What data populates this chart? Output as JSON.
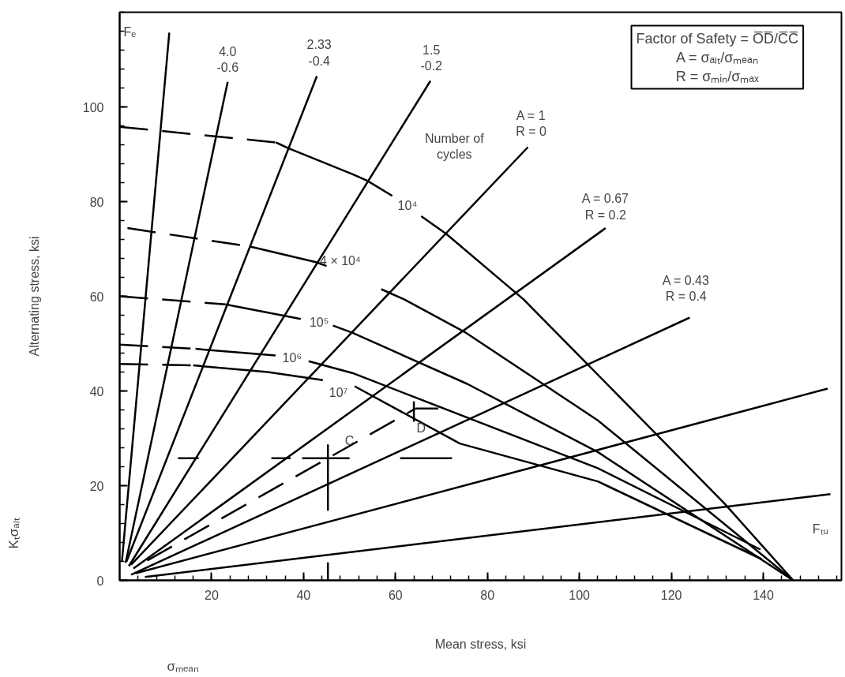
{
  "chart_data": {
    "type": "line",
    "xlabel": "Mean stress, ksi",
    "ylabel": "Alternating stress, ksi",
    "xlim": [
      0,
      157
    ],
    "ylim": [
      0,
      120
    ],
    "xticks": [
      20,
      40,
      60,
      80,
      100,
      120,
      140
    ],
    "yticks": [
      0,
      20,
      40,
      60,
      80,
      100
    ],
    "line_style": "solid",
    "marker": "none",
    "series": [
      {
        "color": "#000000",
        "x": [
          0.5,
          10.8
        ],
        "values": [
          4,
          115.7
        ]
      },
      {
        "color": "#000000",
        "x": [
          1.3,
          23.5
        ],
        "values": [
          3.7,
          105.3
        ]
      },
      {
        "color": "#000000",
        "x": [
          1.5,
          42.9
        ],
        "values": [
          4,
          106.5
        ]
      },
      {
        "color": "#000000",
        "x": [
          2,
          67.6
        ],
        "values": [
          3,
          105.5
        ]
      },
      {
        "color": "#000000",
        "x": [
          2.5,
          88.8
        ],
        "values": [
          3.3,
          91.5
        ]
      },
      {
        "color": "#000000",
        "x": [
          3,
          105.7
        ],
        "values": [
          2.5,
          74.4
        ]
      },
      {
        "color": "#000000",
        "x": [
          2.5,
          124
        ],
        "values": [
          1.2,
          55.5
        ]
      },
      {
        "color": "#000000",
        "x": [
          3.5,
          154
        ],
        "values": [
          1.5,
          40.5
        ]
      },
      {
        "color": "#000000",
        "x": [
          5.5,
          154.6
        ],
        "values": [
          0.7,
          18.2
        ]
      },
      {
        "color": "#000000",
        "line_style": "dashed",
        "x": [
          0,
          34
        ],
        "values": [
          95.8,
          92.5
        ]
      },
      {
        "color": "#000000",
        "x": [
          34,
          36.6,
          50.6,
          53.9,
          59.3,
          62,
          65.6,
          71,
          87.8,
          101.8,
          131.6,
          146.5
        ],
        "values": [
          92.5,
          91.3,
          85.8,
          84.4,
          81.2,
          null,
          76.9,
          73.2,
          59.4,
          45.6,
          16.2,
          0
        ]
      },
      {
        "color": "#000000",
        "line_style": "dashed",
        "x": [
          1.7,
          28.4
        ],
        "values": [
          74.4,
          70.5
        ]
      },
      {
        "color": "#000000",
        "x": [
          28.4,
          42.7,
          45,
          51,
          56.9,
          61.8,
          75.3,
          104,
          146.5
        ],
        "values": [
          70.5,
          67.2,
          66.4,
          null,
          61.5,
          59.4,
          52.3,
          33.8,
          0
        ]
      },
      {
        "color": "#000000",
        "line_style": "dashed",
        "x": [
          0,
          23
        ],
        "values": [
          60,
          58.3
        ]
      },
      {
        "color": "#000000",
        "x": [
          23,
          39.4,
          41,
          46.4,
          50.6,
          75.6,
          104,
          146.5
        ],
        "values": [
          58.3,
          55.2,
          null,
          53.8,
          52.3,
          41.5,
          27.1,
          0
        ]
      },
      {
        "color": "#000000",
        "line_style": "dashed",
        "x": [
          0,
          16.5
        ],
        "values": [
          49.8,
          48.9
        ]
      },
      {
        "color": "#000000",
        "x": [
          16.5,
          33.9,
          37,
          41.1,
          50.6,
          104,
          139.4
        ],
        "values": [
          48.9,
          47.5,
          null,
          46.3,
          43.8,
          23.7,
          6.5
        ]
      },
      {
        "color": "#000000",
        "line_style": "dashed",
        "x": [
          0,
          16
        ],
        "values": [
          45.7,
          45.4
        ]
      },
      {
        "color": "#000000",
        "x": [
          16,
          32.2,
          44.2,
          47.5,
          51.1,
          74,
          104,
          139.6
        ],
        "values": [
          45.4,
          44,
          42.3,
          null,
          41,
          28.9,
          20.9,
          4.5
        ]
      },
      {
        "color": "#000000",
        "line_style": "dashed",
        "x": [
          6,
          64.4
        ],
        "values": [
          4.2,
          36.3
        ]
      },
      {
        "color": "#000000",
        "x": [
          12.7,
          17.2,
          25,
          33,
          37.2,
          38.5,
          39.7,
          50,
          55,
          61,
          72.3
        ],
        "values": [
          25.8,
          25.8,
          null,
          25.8,
          25.8,
          null,
          25.8,
          25.8,
          null,
          25.8,
          25.8
        ]
      },
      {
        "color": "#000000",
        "x": [
          45.3,
          45.3
        ],
        "values": [
          28.7,
          14.7
        ]
      },
      {
        "color": "#000000",
        "x": [
          45.3,
          45.3
        ],
        "values": [
          3.8,
          0
        ]
      },
      {
        "color": "#000000",
        "x": [
          64,
          64
        ],
        "values": [
          37.8,
          33.5
        ]
      },
      {
        "color": "#000000",
        "x": [
          64.4,
          69.3
        ],
        "values": [
          36.3,
          36.3
        ]
      }
    ],
    "annotations": [
      "Factor of Safety = O̅D̅/C̅C̅\nA = σₐₗₜ/σₘₑₐₙ\nR = σₘᵢₙ/σₘₐₓ",
      "Fₑ",
      "4.0\n-0.6",
      "2.33\n-0.4",
      "1.5\n-0.2",
      "Number of\ncycles",
      "A = 1\nR = 0",
      "A = 0.67\nR = 0.2",
      "A = 0.43\nR = 0.4",
      "10⁴",
      "4 × 10⁴",
      "10⁵",
      "10⁶",
      "10⁷",
      "C",
      "D",
      "Fₜᵤ",
      "Kₜσₐₗₜ",
      "σₘₑₐₙ"
    ]
  }
}
